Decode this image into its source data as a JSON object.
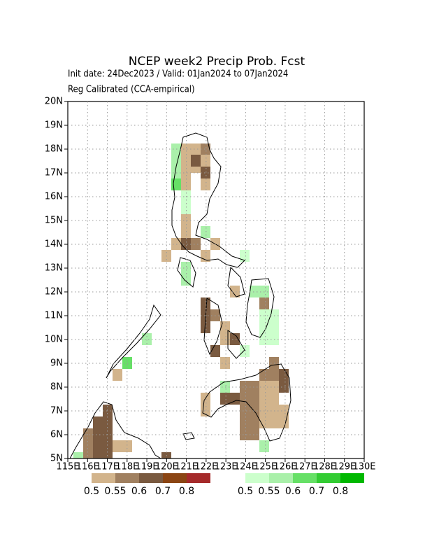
{
  "map": {
    "title": "NCEP week2 Precip Prob. Fcst",
    "init_line": "Init date: 24Dec2023 / Valid: 01Jan2024 to 07Jan2024",
    "method_line": "Reg Calibrated (CCA-empirical)",
    "lonlim": [
      115,
      130
    ],
    "latlim": [
      5,
      20
    ],
    "lon_ticks": [
      {
        "value": 115,
        "label": "115E"
      },
      {
        "value": 116,
        "label": "116E"
      },
      {
        "value": 117,
        "label": "117E"
      },
      {
        "value": 118,
        "label": "118E"
      },
      {
        "value": 119,
        "label": "119E"
      },
      {
        "value": 120,
        "label": "120E"
      },
      {
        "value": 121,
        "label": "121E"
      },
      {
        "value": 122,
        "label": "122E"
      },
      {
        "value": 123,
        "label": "123E"
      },
      {
        "value": 124,
        "label": "124E"
      },
      {
        "value": 125,
        "label": "125E"
      },
      {
        "value": 126,
        "label": "126E"
      },
      {
        "value": 127,
        "label": "127E"
      },
      {
        "value": 128,
        "label": "128E"
      },
      {
        "value": 129,
        "label": "129E"
      },
      {
        "value": 130,
        "label": "130E"
      }
    ],
    "lat_ticks": [
      {
        "value": 5,
        "label": "5N"
      },
      {
        "value": 6,
        "label": "6N"
      },
      {
        "value": 7,
        "label": "7N"
      },
      {
        "value": 8,
        "label": "8N"
      },
      {
        "value": 9,
        "label": "9N"
      },
      {
        "value": 10,
        "label": "10N"
      },
      {
        "value": 11,
        "label": "11N"
      },
      {
        "value": 12,
        "label": "12N"
      },
      {
        "value": 13,
        "label": "13N"
      },
      {
        "value": 14,
        "label": "14N"
      },
      {
        "value": 15,
        "label": "15N"
      },
      {
        "value": 16,
        "label": "16N"
      },
      {
        "value": 17,
        "label": "17N"
      },
      {
        "value": 18,
        "label": "18N"
      },
      {
        "value": 19,
        "label": "19N"
      },
      {
        "value": 20,
        "label": "20N"
      }
    ],
    "legend_dry": [
      "0.5",
      "0.55",
      "0.6",
      "0.7",
      "0.8"
    ],
    "legend_wet": [
      "0.5",
      "0.55",
      "0.6",
      "0.7",
      "0.8"
    ]
  }
}
